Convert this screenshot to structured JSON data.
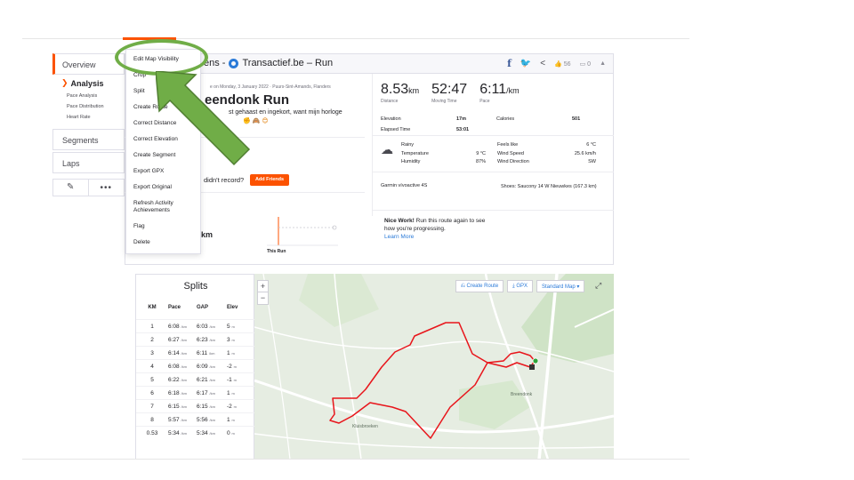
{
  "sidebar": {
    "overview": "Overview",
    "analysis": "Analysis",
    "sub_items": [
      "Pace Analysis",
      "Pace Distribution",
      "Heart Rate"
    ],
    "segments": "Segments",
    "laps": "Laps",
    "edit_icon": "pencil-icon",
    "more_icon": "ellipsis-icon"
  },
  "header": {
    "title_prefix": "ens -",
    "title_suffix": "Transactief.be – Run",
    "kudos_count": "56",
    "comment_count": "0"
  },
  "activity": {
    "meta": "e on Monday, 3 January 2022 · Puurs-Sint-Amands, Flanders",
    "name": "eendonk Run",
    "desc_line": "st gehaast en ingekort, want mijn horloge",
    "record_prompt": "didn't record?",
    "add_friends": "Add Friends",
    "chart_value_label": "km",
    "this_run": "This Run"
  },
  "stats": {
    "distance": {
      "value": "8.53",
      "unit": "km",
      "label": "Distance"
    },
    "moving_time": {
      "value": "52:47",
      "label": "Moving Time"
    },
    "pace": {
      "value": "6:11",
      "unit": "/km",
      "label": "Pace"
    },
    "elevation_label": "Elevation",
    "elevation_value": "17m",
    "calories_label": "Calories",
    "calories_value": "501",
    "elapsed_label": "Elapsed Time",
    "elapsed_value": "53:01"
  },
  "weather": {
    "condition": "Rainy",
    "temperature_label": "Temperature",
    "temperature_value": "9 °C",
    "humidity_label": "Humidity",
    "humidity_value": "87%",
    "feels_like_label": "Feels like",
    "feels_like_value": "6 °C",
    "wind_speed_label": "Wind Speed",
    "wind_speed_value": "25.6 km/h",
    "wind_direction_label": "Wind Direction",
    "wind_direction_value": "SW"
  },
  "device": "Garmin vívoactive 4S",
  "shoes": "Shoes: Saucony 14 W Nieuwkes (167.3 km)",
  "nicework": {
    "bold": "Nice Work!",
    "text": " Run this route again to see how you're progressing.",
    "link": "Learn More"
  },
  "dropdown": {
    "items": [
      "Edit Map Visibility",
      "Crop",
      "Split",
      "Create Route",
      "Correct Distance",
      "Correct Elevation",
      "Create Segment",
      "Export GPX",
      "Export Original",
      "Refresh Activity Achievements",
      "Flag",
      "Delete"
    ]
  },
  "splits": {
    "title": "Splits",
    "headers": [
      "KM",
      "Pace",
      "GAP",
      "Elev"
    ],
    "unit": "/km",
    "elev_unit": "m",
    "rows": [
      {
        "km": "1",
        "pace": "6:08",
        "gap": "6:03",
        "elev": "5"
      },
      {
        "km": "2",
        "pace": "6:27",
        "gap": "6:23",
        "elev": "3"
      },
      {
        "km": "3",
        "pace": "6:14",
        "gap": "6:11",
        "elev": "1"
      },
      {
        "km": "4",
        "pace": "6:08",
        "gap": "6:09",
        "elev": "-2"
      },
      {
        "km": "5",
        "pace": "6:22",
        "gap": "6:21",
        "elev": "-1"
      },
      {
        "km": "6",
        "pace": "6:18",
        "gap": "6:17",
        "elev": "1"
      },
      {
        "km": "7",
        "pace": "6:15",
        "gap": "6:15",
        "elev": "-2"
      },
      {
        "km": "8",
        "pace": "5:57",
        "gap": "5:56",
        "elev": "1"
      },
      {
        "km": "0.53",
        "pace": "5:34",
        "gap": "5:34",
        "elev": "0"
      }
    ]
  },
  "map": {
    "create_route": "Create Route",
    "gpx": "GPX",
    "standard_map": "Standard Map",
    "zoom_in": "+",
    "zoom_out": "−",
    "place_breendonk": "Breendonk",
    "place_kluisbroeken": "Kluisbroeken",
    "route_color": "#e8151b"
  },
  "colors": {
    "brand": "#fc5200",
    "highlight": "#70ad47"
  }
}
